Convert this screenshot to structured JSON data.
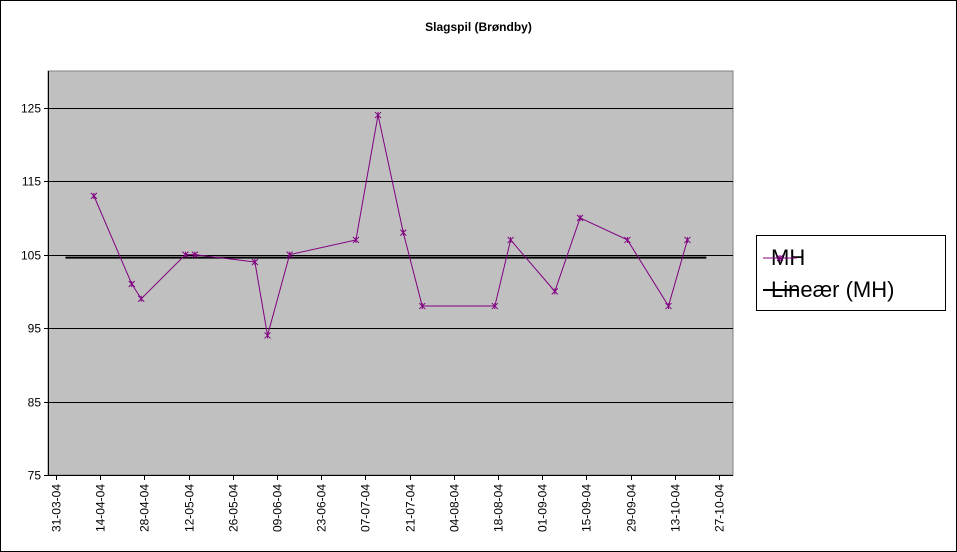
{
  "chart_data": {
    "type": "line",
    "title": "Slagspil (Brøndby)",
    "xlabel": "",
    "ylabel": "",
    "ylim": [
      75,
      130
    ],
    "yticks": [
      75,
      85,
      95,
      105,
      115,
      125
    ],
    "x_tick_labels": [
      "31-03-04",
      "14-04-04",
      "28-04-04",
      "12-05-04",
      "26-05-04",
      "09-06-04",
      "23-06-04",
      "07-07-04",
      "21-07-04",
      "04-08-04",
      "18-08-04",
      "01-09-04",
      "15-09-04",
      "29-09-04",
      "13-10-04",
      "27-10-04"
    ],
    "grid": true,
    "legend_placement": "right",
    "series": [
      {
        "name": "MH",
        "color": "#800080",
        "marker": "asterisk",
        "points": [
          {
            "x": "2004-04-12",
            "y": 113
          },
          {
            "x": "2004-04-24",
            "y": 101
          },
          {
            "x": "2004-04-27",
            "y": 99
          },
          {
            "x": "2004-05-11",
            "y": 105
          },
          {
            "x": "2004-05-14",
            "y": 105
          },
          {
            "x": "2004-06-02",
            "y": 104
          },
          {
            "x": "2004-06-06",
            "y": 94
          },
          {
            "x": "2004-06-13",
            "y": 105
          },
          {
            "x": "2004-07-04",
            "y": 107
          },
          {
            "x": "2004-07-11",
            "y": 124
          },
          {
            "x": "2004-07-19",
            "y": 108
          },
          {
            "x": "2004-07-25",
            "y": 98
          },
          {
            "x": "2004-08-17",
            "y": 98
          },
          {
            "x": "2004-08-22",
            "y": 107
          },
          {
            "x": "2004-09-05",
            "y": 100
          },
          {
            "x": "2004-09-13",
            "y": 110
          },
          {
            "x": "2004-09-28",
            "y": 107
          },
          {
            "x": "2004-10-11",
            "y": 98
          },
          {
            "x": "2004-10-17",
            "y": 107
          }
        ]
      },
      {
        "name": "Lineær (MH)",
        "color": "#000000",
        "type": "trendline",
        "points": [
          {
            "x": "2004-04-03",
            "y": 104.6
          },
          {
            "x": "2004-10-23",
            "y": 104.6
          }
        ]
      }
    ]
  }
}
